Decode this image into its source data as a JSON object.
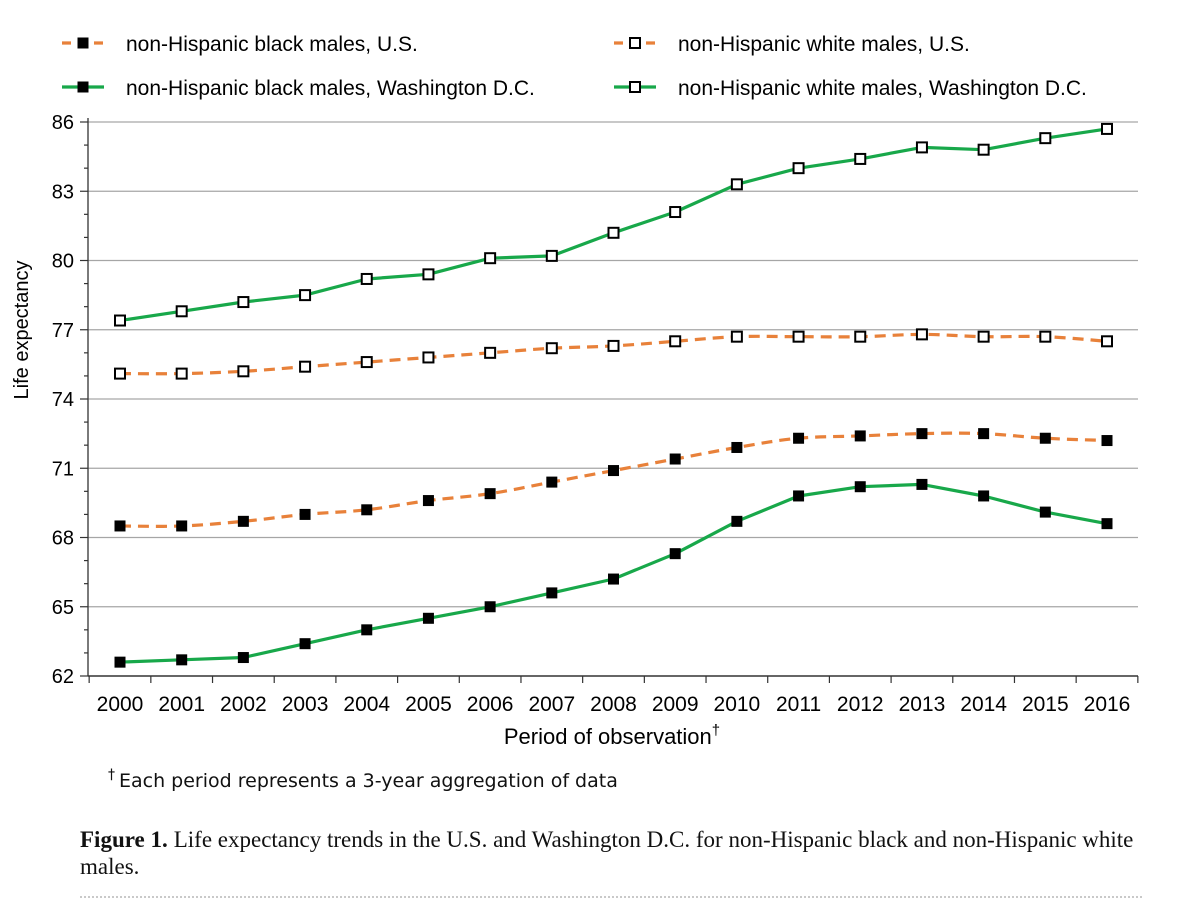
{
  "chart_data": {
    "type": "line",
    "xlabel": "Period of observation",
    "xlabel_mark": "†",
    "ylabel": "Life expectancy",
    "ylim": [
      62,
      86
    ],
    "yticks": [
      62,
      65,
      68,
      71,
      74,
      77,
      80,
      83,
      86
    ],
    "grid": true,
    "legend_position": "top",
    "categories": [
      "2000",
      "2001",
      "2002",
      "2003",
      "2004",
      "2005",
      "2006",
      "2007",
      "2008",
      "2009",
      "2010",
      "2011",
      "2012",
      "2013",
      "2014",
      "2015",
      "2016"
    ],
    "series": [
      {
        "name": "non-Hispanic black males, U.S.",
        "color": "#e8813a",
        "line": "dashed",
        "marker": "filled-square",
        "values": [
          68.5,
          68.5,
          68.7,
          69.0,
          69.2,
          69.6,
          69.9,
          70.4,
          70.9,
          71.4,
          71.9,
          72.3,
          72.4,
          72.5,
          72.5,
          72.3,
          72.2
        ]
      },
      {
        "name": "non-Hispanic white males, U.S.",
        "color": "#e8813a",
        "line": "dashed",
        "marker": "open-square",
        "values": [
          75.1,
          75.1,
          75.2,
          75.4,
          75.6,
          75.8,
          76.0,
          76.2,
          76.3,
          76.5,
          76.7,
          76.7,
          76.7,
          76.8,
          76.7,
          76.7,
          76.5
        ]
      },
      {
        "name": "non-Hispanic black males, Washington D.C.",
        "color": "#18a84a",
        "line": "solid",
        "marker": "filled-square",
        "values": [
          62.6,
          62.7,
          62.8,
          63.4,
          64.0,
          64.5,
          65.0,
          65.6,
          66.2,
          67.3,
          68.7,
          69.8,
          70.2,
          70.3,
          69.8,
          69.1,
          68.6
        ]
      },
      {
        "name": "non-Hispanic white males, Washington D.C.",
        "color": "#18a84a",
        "line": "solid",
        "marker": "open-square",
        "values": [
          77.4,
          77.8,
          78.2,
          78.5,
          79.2,
          79.4,
          80.1,
          80.2,
          81.2,
          82.1,
          83.3,
          84.0,
          84.4,
          84.9,
          84.8,
          85.3,
          85.7
        ]
      }
    ]
  },
  "footnote": {
    "mark": "†",
    "text": "Each period represents a 3-year aggregation of data"
  },
  "caption": {
    "label": "Figure 1.",
    "text": "Life expectancy trends in the U.S. and Washington D.C. for non-Hispanic black and non-Hispanic white males."
  }
}
